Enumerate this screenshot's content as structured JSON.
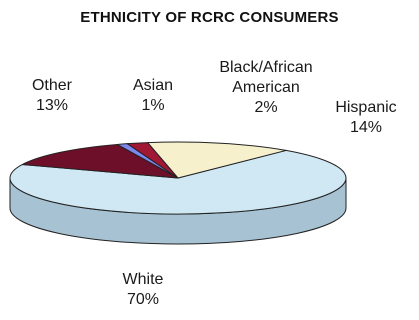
{
  "chart_data": {
    "type": "pie",
    "title": "ETHNICITY OF RCRC CONSUMERS",
    "categories": [
      "White",
      "Other",
      "Asian",
      "Black/African American",
      "Hispanic"
    ],
    "values": [
      70,
      13,
      1,
      2,
      14
    ],
    "value_labels": [
      "70%",
      "13%",
      "1%",
      "2%",
      "14%"
    ],
    "label_lines": [
      [
        "White"
      ],
      [
        "Other"
      ],
      [
        "Asian"
      ],
      [
        "Black/African",
        "American"
      ],
      [
        "Hispanic"
      ]
    ],
    "colors": [
      "#cfe8f4",
      "#6e0f2a",
      "#7f88ee",
      "#a01834",
      "#f6f1cc"
    ],
    "side_colors": [
      "#a7c3d3",
      "#4d0a1d",
      "#5c63b6",
      "#700f22",
      "#cfc9a0"
    ],
    "style": "3d"
  }
}
